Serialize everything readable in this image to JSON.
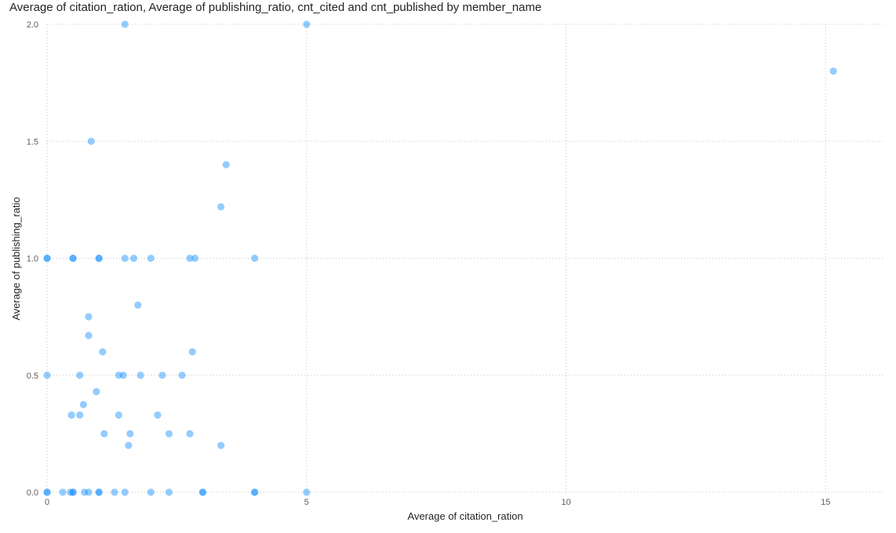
{
  "chart_data": {
    "type": "scatter",
    "title": "Average of citation_ration, Average of publishing_ratio, cnt_cited and cnt_published by member_name",
    "xlabel": "Average of citation_ration",
    "ylabel": "Average of publishing_ratio",
    "xlim": [
      0,
      16.1
    ],
    "ylim": [
      0,
      2
    ],
    "x_ticks": [
      0,
      5,
      10,
      15
    ],
    "y_ticks": [
      0,
      0.5,
      1,
      1.5,
      2
    ],
    "x_tick_labels": [
      "0",
      "5",
      "10",
      "15"
    ],
    "y_tick_labels": [
      "0.0",
      "0.5",
      "1.0",
      "1.5",
      "2.0"
    ],
    "grid": true,
    "point_color": "#118DFF",
    "points": [
      {
        "x": 1.5,
        "y": 2.0
      },
      {
        "x": 5.0,
        "y": 2.0
      },
      {
        "x": 15.15,
        "y": 1.8
      },
      {
        "x": 0.85,
        "y": 1.5
      },
      {
        "x": 3.45,
        "y": 1.4
      },
      {
        "x": 3.35,
        "y": 1.22
      },
      {
        "x": 0.0,
        "y": 1.0
      },
      {
        "x": 0.0,
        "y": 1.0
      },
      {
        "x": 0.5,
        "y": 1.0
      },
      {
        "x": 0.5,
        "y": 1.0
      },
      {
        "x": 1.0,
        "y": 1.0
      },
      {
        "x": 1.0,
        "y": 1.0
      },
      {
        "x": 1.5,
        "y": 1.0
      },
      {
        "x": 1.67,
        "y": 1.0
      },
      {
        "x": 2.0,
        "y": 1.0
      },
      {
        "x": 2.75,
        "y": 1.0
      },
      {
        "x": 2.85,
        "y": 1.0
      },
      {
        "x": 4.0,
        "y": 1.0
      },
      {
        "x": 1.75,
        "y": 0.8
      },
      {
        "x": 0.8,
        "y": 0.75
      },
      {
        "x": 0.8,
        "y": 0.67
      },
      {
        "x": 1.07,
        "y": 0.6
      },
      {
        "x": 2.8,
        "y": 0.6
      },
      {
        "x": 0.0,
        "y": 0.5
      },
      {
        "x": 0.63,
        "y": 0.5
      },
      {
        "x": 1.38,
        "y": 0.5
      },
      {
        "x": 1.47,
        "y": 0.5
      },
      {
        "x": 1.8,
        "y": 0.5
      },
      {
        "x": 2.22,
        "y": 0.5
      },
      {
        "x": 2.6,
        "y": 0.5
      },
      {
        "x": 0.95,
        "y": 0.43
      },
      {
        "x": 0.7,
        "y": 0.375
      },
      {
        "x": 0.47,
        "y": 0.33
      },
      {
        "x": 0.63,
        "y": 0.33
      },
      {
        "x": 1.38,
        "y": 0.33
      },
      {
        "x": 2.13,
        "y": 0.33
      },
      {
        "x": 1.1,
        "y": 0.25
      },
      {
        "x": 1.6,
        "y": 0.25
      },
      {
        "x": 2.35,
        "y": 0.25
      },
      {
        "x": 2.75,
        "y": 0.25
      },
      {
        "x": 1.57,
        "y": 0.2
      },
      {
        "x": 3.35,
        "y": 0.2
      },
      {
        "x": 0.0,
        "y": 0.0
      },
      {
        "x": 0.0,
        "y": 0.0
      },
      {
        "x": 0.3,
        "y": 0.0
      },
      {
        "x": 0.45,
        "y": 0.0
      },
      {
        "x": 0.5,
        "y": 0.0
      },
      {
        "x": 0.5,
        "y": 0.0
      },
      {
        "x": 0.72,
        "y": 0.0
      },
      {
        "x": 0.8,
        "y": 0.0
      },
      {
        "x": 1.0,
        "y": 0.0
      },
      {
        "x": 1.0,
        "y": 0.0
      },
      {
        "x": 1.3,
        "y": 0.0
      },
      {
        "x": 1.5,
        "y": 0.0
      },
      {
        "x": 2.0,
        "y": 0.0
      },
      {
        "x": 2.35,
        "y": 0.0
      },
      {
        "x": 3.0,
        "y": 0.0
      },
      {
        "x": 3.0,
        "y": 0.0
      },
      {
        "x": 4.0,
        "y": 0.0
      },
      {
        "x": 4.0,
        "y": 0.0
      },
      {
        "x": 5.0,
        "y": 0.0
      }
    ]
  }
}
